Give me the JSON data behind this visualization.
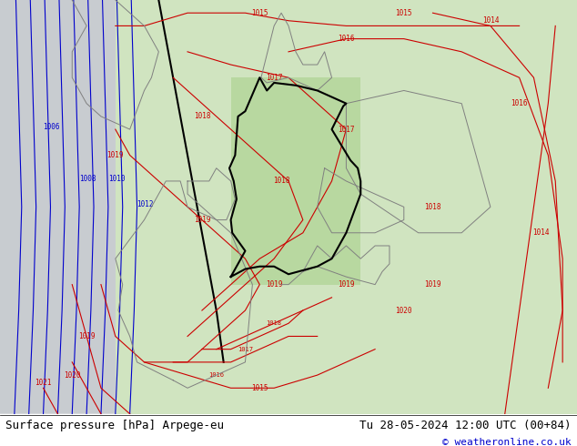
{
  "title_left": "Surface pressure [hPa] Arpege-eu",
  "title_right": "Tu 28-05-2024 12:00 UTC (00+84)",
  "credit": "© weatheronline.co.uk",
  "bg_color": "#e8f4e8",
  "land_color": "#c8e6c8",
  "sea_color": "#d8e8d8",
  "footer_bg": "#ffffff",
  "footer_text_color": "#000000",
  "credit_color": "#0000cc",
  "isobar_color_red": "#cc0000",
  "isobar_color_blue": "#0000cc",
  "isobar_color_black": "#000000",
  "title_fontsize": 9,
  "credit_fontsize": 8
}
